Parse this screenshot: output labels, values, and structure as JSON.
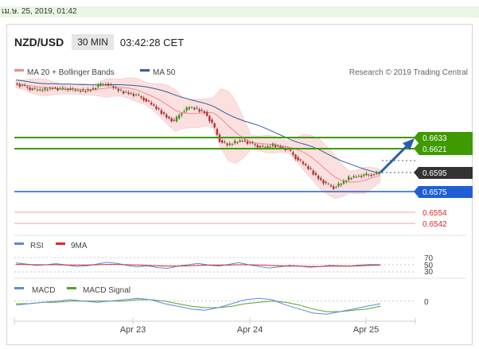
{
  "timestamp": "เม.ษ. 25, 2019, 01:42",
  "header": {
    "symbol": "NZD/USD",
    "timeframe": "30 MIN",
    "time": "03:42:28 CET"
  },
  "legend": {
    "ma20": "MA 20 + Bollinger Bands",
    "ma50": "MA 50",
    "credit": "Research © 2019 Trading Central",
    "rsi": "RSI",
    "rsi_ma": "9MA",
    "macd": "MACD",
    "macd_signal": "MACD Signal"
  },
  "colors": {
    "ma20": "#f08a8a",
    "ma50": "#2f5f9e",
    "bb_fill": "#fbd9d9",
    "green_level": "#3e9a00",
    "blue_level": "#1f5fd6",
    "red_level": "#f08080",
    "candle_up": "#3e9a00",
    "candle_down": "#c62828",
    "arrow": "#2b5ea8",
    "rsi": "#5b8bd9",
    "rsi_ma": "#d62828",
    "macd": "#5b8bd9",
    "macd_signal": "#5aa02c"
  },
  "chart_data": [
    {
      "type": "candlestick",
      "title": "NZD/USD 30 MIN",
      "x": [
        "Apr 23",
        "Apr 24",
        "Apr 25"
      ],
      "levels": [
        {
          "value": "0.6633",
          "kind": "resistance",
          "color": "green"
        },
        {
          "value": "0.6621",
          "kind": "resistance",
          "color": "green"
        },
        {
          "value": "0.6595",
          "kind": "current",
          "color": "dark"
        },
        {
          "value": "0.6575",
          "kind": "pivot",
          "color": "blue"
        },
        {
          "value": "0.6554",
          "kind": "support",
          "color": "red"
        },
        {
          "value": "0.6542",
          "kind": "support",
          "color": "red"
        }
      ],
      "close_series": [
        0.669,
        0.6688,
        0.6685,
        0.6683,
        0.6684,
        0.6686,
        0.6684,
        0.6685,
        0.6683,
        0.6682,
        0.6684,
        0.6688,
        0.669,
        0.6686,
        0.6682,
        0.668,
        0.6678,
        0.6674,
        0.6668,
        0.6662,
        0.6655,
        0.665,
        0.666,
        0.6665,
        0.6663,
        0.666,
        0.6648,
        0.663,
        0.6625,
        0.6628,
        0.663,
        0.6627,
        0.6624,
        0.6622,
        0.6625,
        0.6623,
        0.662,
        0.6612,
        0.6605,
        0.6598,
        0.659,
        0.6584,
        0.658,
        0.6584,
        0.659,
        0.6592,
        0.6593,
        0.6594,
        0.6595
      ],
      "forecast_arrow": {
        "from": "0.6595",
        "to": "0.6633"
      }
    },
    {
      "type": "line",
      "title": "RSI",
      "series": [
        {
          "name": "RSI"
        },
        {
          "name": "9MA"
        }
      ],
      "ticks": [
        "70",
        "50",
        "30"
      ],
      "values": [
        55,
        52,
        48,
        50,
        53,
        49,
        45,
        47,
        52,
        57,
        54,
        48,
        44,
        47,
        42,
        40,
        46,
        50,
        54,
        49,
        46,
        51,
        56,
        50,
        45,
        41,
        44,
        48,
        46,
        43,
        45,
        48,
        47,
        46,
        49,
        51,
        50
      ],
      "ma_values": [
        51,
        51,
        50,
        50,
        50,
        49,
        49,
        49,
        50,
        51,
        51,
        50,
        49,
        48,
        47,
        46,
        46,
        47,
        48,
        49,
        49,
        49,
        50,
        50,
        49,
        48,
        47,
        46,
        46,
        45,
        45,
        46,
        46,
        46,
        47,
        48,
        49
      ]
    },
    {
      "type": "line",
      "title": "MACD",
      "series": [
        {
          "name": "MACD"
        },
        {
          "name": "MACD Signal"
        }
      ],
      "ticks": [
        "0"
      ],
      "values": [
        -0.0003,
        -0.0002,
        -0.0001,
        0.0,
        0.0001,
        0.0,
        -0.0001,
        0.0,
        0.0001,
        0.0002,
        0.0001,
        -0.0002,
        -0.0004,
        -0.0006,
        -0.0007,
        -0.0005,
        -0.0002,
        0.0001,
        0.0002,
        0.0001,
        -0.0003,
        -0.0006,
        -0.0009,
        -0.001,
        -0.0008,
        -0.0006,
        -0.0004,
        -0.0002
      ],
      "signal_values": [
        -0.0002,
        -0.0002,
        -0.0001,
        -0.0001,
        0.0,
        0.0,
        0.0,
        0.0,
        0.0,
        0.0001,
        0.0001,
        0.0,
        -0.0002,
        -0.0004,
        -0.0005,
        -0.0005,
        -0.0004,
        -0.0002,
        -0.0001,
        0.0,
        -0.0001,
        -0.0003,
        -0.0006,
        -0.0008,
        -0.0008,
        -0.0007,
        -0.0006,
        -0.0004
      ]
    }
  ]
}
